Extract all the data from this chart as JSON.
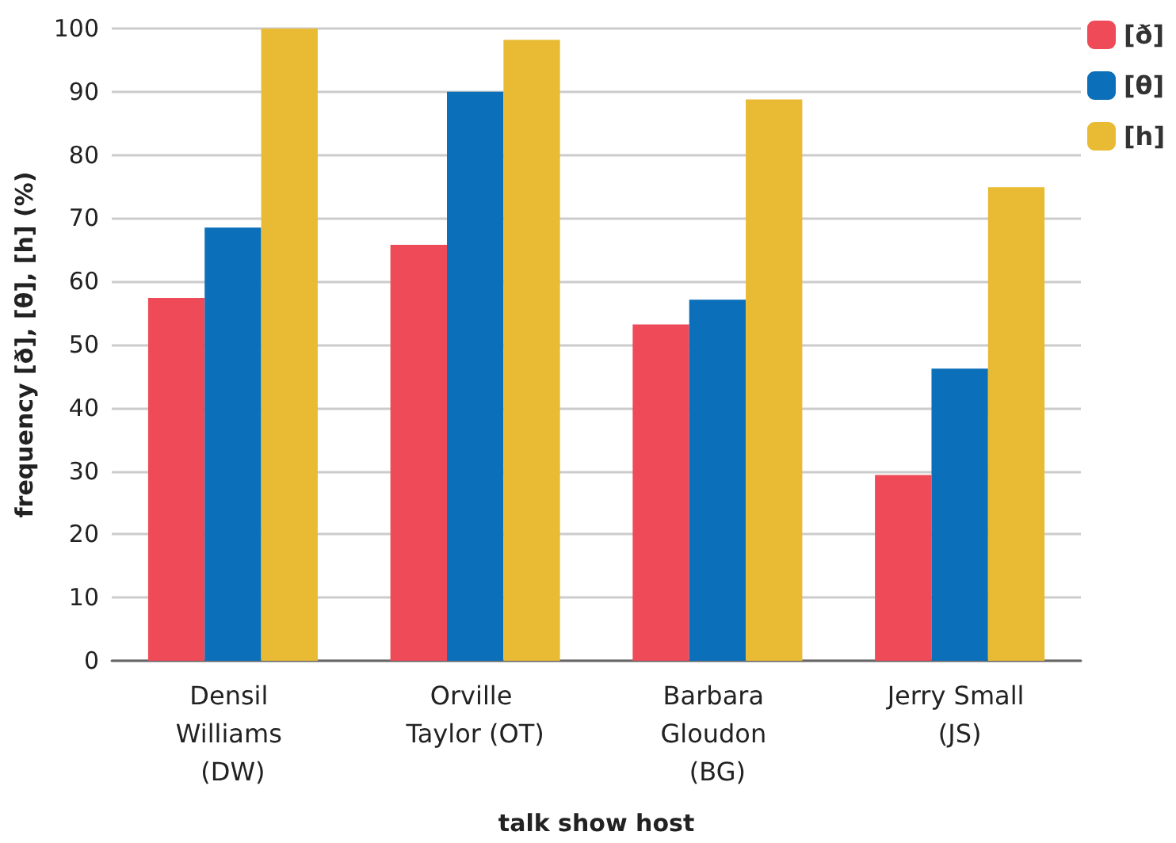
{
  "chart_data": {
    "type": "bar",
    "xlabel": "talk show host",
    "ylabel": "frequency [ð], [θ], [h] (%)",
    "categories": [
      "Densil Williams (DW)",
      "Orville Taylor (OT)",
      "Barbara Gloudon (BG)",
      "Jerry Small (JS)"
    ],
    "series": [
      {
        "name": "[ð]",
        "color": "#ee4a58",
        "values": [
          57.4,
          65.8,
          53.2,
          29.4
        ]
      },
      {
        "name": "[θ]",
        "color": "#0c6fb9",
        "values": [
          68.5,
          90.0,
          57.1,
          46.2
        ]
      },
      {
        "name": "[h]",
        "color": "#e9bb34",
        "values": [
          100,
          98.2,
          88.8,
          74.9
        ]
      }
    ],
    "ylim": [
      0,
      100
    ],
    "yticks": [
      0,
      10,
      20,
      30,
      40,
      50,
      60,
      70,
      80,
      90,
      100
    ],
    "grid": "y",
    "legend": "top right"
  }
}
